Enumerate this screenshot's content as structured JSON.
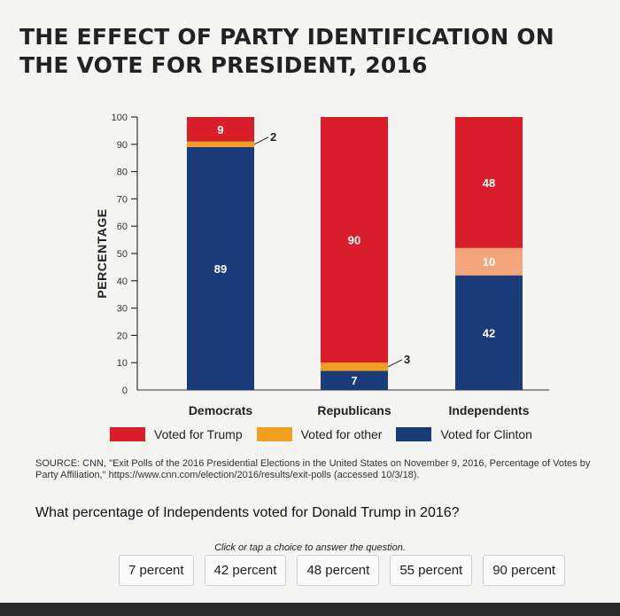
{
  "title_line1": "THE EFFECT OF PARTY IDENTIFICATION ON",
  "title_line2": "THE VOTE FOR PRESIDENT, 2016",
  "chart_data": {
    "type": "bar",
    "stacked": true,
    "ylabel": "PERCENTAGE",
    "ylim": [
      0,
      100
    ],
    "yticks": [
      0,
      10,
      20,
      30,
      40,
      50,
      60,
      70,
      80,
      90,
      100
    ],
    "categories": [
      "Democrats",
      "Republicans",
      "Independents"
    ],
    "series": [
      {
        "name": "Voted for Clinton",
        "color": "#1b3a7a",
        "values": [
          89,
          7,
          42
        ]
      },
      {
        "name": "Voted for other",
        "color": "#f0a020",
        "values": [
          2,
          3,
          10
        ]
      },
      {
        "name": "Voted for Trump",
        "color": "#d81e2a",
        "values": [
          9,
          90,
          48
        ]
      }
    ],
    "other_segment_color_independents": "#f4a67a",
    "legend_order": [
      "Voted for Trump",
      "Voted for other",
      "Voted for Clinton"
    ],
    "legend_position": "bottom"
  },
  "source_text": "SOURCE: CNN, \"Exit Polls of the 2016 Presidential Elections in the United States on November 9, 2016, Percentage of Votes by Party Affiliation,\" https://www.cnn.com/election/2016/results/exit-polls (accessed 10/3/18).",
  "question": "What percentage of Independents voted for Donald Trump in 2016?",
  "hint": "Click or tap a choice to answer the question.",
  "choices": [
    "7 percent",
    "42 percent",
    "48 percent",
    "55 percent",
    "90 percent"
  ]
}
